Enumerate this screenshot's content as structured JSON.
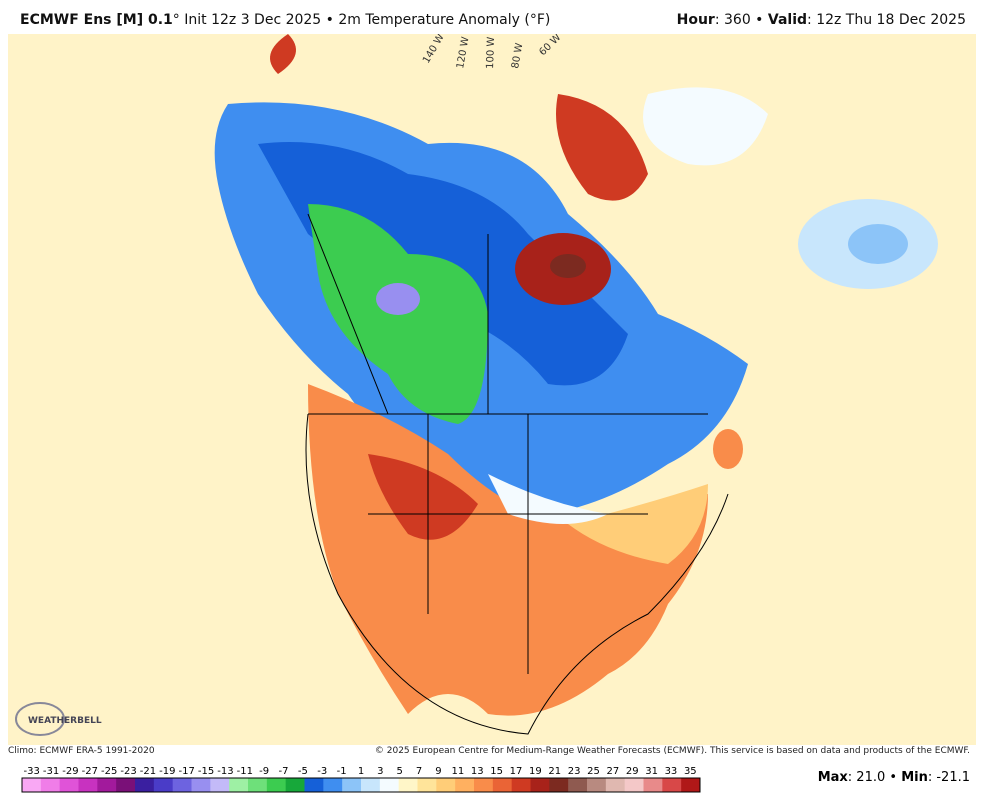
{
  "header": {
    "title_bold": "ECMWF Ens [M] 0.1",
    "title_rest": "° Init 12z 3 Dec 2025 • 2m Temperature Anomaly (°F)",
    "hour_key": "Hour",
    "hour_value": ": 360 • ",
    "valid_key": "Valid",
    "valid_value": ": 12z Thu 18 Dec 2025"
  },
  "map": {
    "longitude_labels": [
      "140 W",
      "120 W",
      "100 W",
      "80 W",
      "60 W"
    ],
    "logo": "WEATHERBELL"
  },
  "footer": {
    "climo": "Climo: ECMWF ERA-5 1991-2020",
    "copyright": "© 2025 European Centre for Medium-Range Weather Forecasts (ECMWF). This service is based on data and products of the ECMWF."
  },
  "colorbar": {
    "labels": [
      -33,
      -31,
      -29,
      -27,
      -25,
      -23,
      -21,
      -19,
      -17,
      -15,
      -13,
      -11,
      -9,
      -7,
      -5,
      -3,
      -1,
      1,
      3,
      5,
      7,
      9,
      11,
      13,
      15,
      17,
      19,
      21,
      23,
      25,
      27,
      29,
      31,
      33,
      35
    ],
    "colors": [
      "#f9a8f4",
      "#f07de8",
      "#e053d8",
      "#c832c0",
      "#a21a9c",
      "#7a1078",
      "#3a1fa0",
      "#4a3cc8",
      "#6d63e0",
      "#988ff0",
      "#c3baf8",
      "#9ef0a4",
      "#6ee07a",
      "#3ccc50",
      "#17a83a",
      "#1560d8",
      "#3f8ef0",
      "#8cc4f8",
      "#c8e6fc",
      "#f4fbff",
      "#fff6c8",
      "#ffe49a",
      "#ffcd78",
      "#ffb060",
      "#f98c4a",
      "#ea6436",
      "#cf3a22",
      "#a8221a",
      "#7c2a20",
      "#8f5a50",
      "#b88a80",
      "#e0b8b0",
      "#f4c8c8",
      "#e88a8a",
      "#d84848",
      "#b01818"
    ]
  },
  "stats": {
    "max_key": "Max",
    "max_value": ": 21.0 • ",
    "min_key": "Min",
    "min_value": ": -21.1"
  }
}
